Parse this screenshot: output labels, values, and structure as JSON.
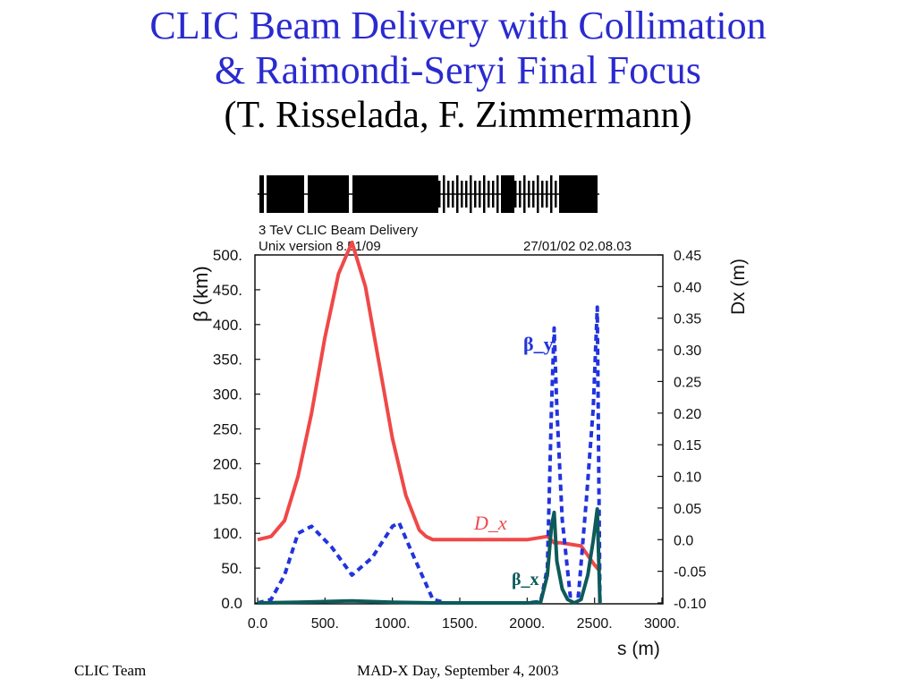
{
  "slide": {
    "title_line1": "CLIC Beam Delivery with Collimation",
    "title_line2": "& Raimondi-Seryi Final Focus",
    "authors": "(T. Risselada, F. Zimmermann)",
    "footer_left": "CLIC Team",
    "footer_center": "MAD-X Day, September 4, 2003",
    "title_color": "#2a2ad0"
  },
  "chart_data": {
    "type": "line",
    "header_line1": "3 TeV CLIC Beam Delivery",
    "header_line2": "Unix version 8.51/09",
    "header_date": "27/01/02  02.08.03",
    "xlabel": "s (m)",
    "ylabel_left": "β (km)",
    "ylabel_right": "Dx (m)",
    "xlim": [
      0,
      3000
    ],
    "ylim_left": [
      0,
      500
    ],
    "ylim_right": [
      -0.1,
      0.45
    ],
    "x_ticks": [
      "0.0",
      "500.",
      "1000.",
      "1500.",
      "2000.",
      "2500.",
      "3000."
    ],
    "y_left_ticks": [
      "0.0",
      "50.",
      "100.",
      "150.",
      "200.",
      "250.",
      "300.",
      "350.",
      "400.",
      "450.",
      "500."
    ],
    "y_right_ticks": [
      "-0.10",
      "-0.05",
      "0.0",
      "0.05",
      "0.10",
      "0.15",
      "0.20",
      "0.25",
      "0.30",
      "0.35",
      "0.40",
      "0.45"
    ],
    "series": [
      {
        "name": "D_x",
        "axis": "right",
        "color": "#f04848",
        "style": "solid",
        "x": [
          0,
          100,
          200,
          300,
          400,
          500,
          600,
          700,
          800,
          900,
          1000,
          1100,
          1200,
          1250,
          1300,
          1400,
          2000,
          2150,
          2200,
          2250,
          2400,
          2500,
          2540
        ],
        "y": [
          0.0,
          0.005,
          0.03,
          0.1,
          0.2,
          0.32,
          0.42,
          0.47,
          0.4,
          0.28,
          0.16,
          0.07,
          0.015,
          0.005,
          0.0,
          0.0,
          0.0,
          0.005,
          -0.005,
          -0.005,
          -0.01,
          -0.04,
          -0.05
        ]
      },
      {
        "name": "β_y",
        "axis": "left",
        "color": "#2233dd",
        "style": "dashed",
        "x": [
          0,
          100,
          200,
          300,
          400,
          550,
          700,
          850,
          1000,
          1050,
          1150,
          1300,
          1400,
          2000,
          2100,
          2150,
          2180,
          2200,
          2220,
          2260,
          2320,
          2380,
          2440,
          2490,
          2520,
          2540
        ],
        "y": [
          0,
          5,
          40,
          100,
          110,
          80,
          40,
          65,
          110,
          115,
          70,
          5,
          0,
          0,
          2,
          50,
          280,
          395,
          280,
          120,
          10,
          10,
          150,
          280,
          425,
          0
        ]
      },
      {
        "name": "β_x",
        "axis": "left",
        "color": "#0d5a5a",
        "style": "solid",
        "x": [
          0,
          300,
          700,
          1000,
          1300,
          2000,
          2100,
          2150,
          2180,
          2200,
          2220,
          2260,
          2300,
          2350,
          2400,
          2450,
          2490,
          2520,
          2540
        ],
        "y": [
          0,
          1,
          3,
          1,
          0,
          0,
          1,
          40,
          110,
          130,
          60,
          20,
          5,
          0,
          5,
          40,
          90,
          135,
          0
        ]
      }
    ],
    "annotations": [
      "β_y",
      "D_x",
      "β_x"
    ]
  }
}
